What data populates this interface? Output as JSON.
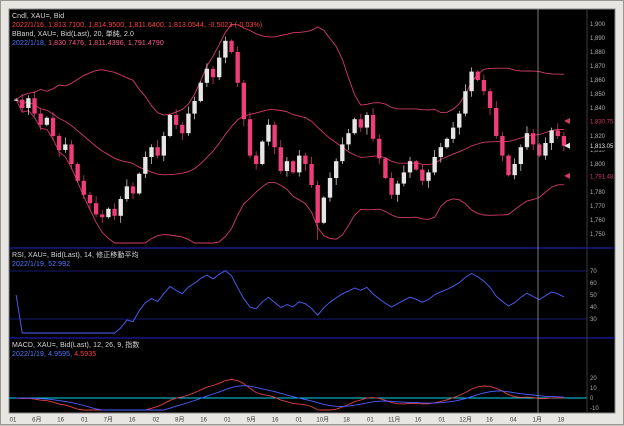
{
  "colors": {
    "chart_bg": "#000000",
    "margin_bg": "#e8e6e2",
    "candle_up": "#e6e6e6",
    "candle_down": "#ee3d7a",
    "band": "#d23b64",
    "rsi_line": "#5060ff",
    "rsi_level": "#202095",
    "macd_line": "#e04040",
    "macd_signal": "#4d5dff",
    "zero_line": "#00d5e8",
    "separator": "#2222cc",
    "axis_text": "#b0b0b0",
    "time_text": "#3a3a3a",
    "crosshair": "#9a9a9a"
  },
  "legend_main": {
    "line1": "Cndl, XAU=, Bid",
    "line2": "2022/1/16, 1,813.7100, 1,814.9500, 1,811.6400, 1,813.0544, -0.5023 (-0.03%)",
    "line3": "BBand, XAU=, Bid(Last), 20, 単純, 2.0",
    "line4_date": "2022/1/18,",
    "line4_values": "1,830.7476, 1,811.4396, 1,791.4790"
  },
  "legend_rsi": {
    "line1": "RSI, XAU=, Bid(Last), 14, 修正移動平均",
    "line2": "2022/1/19, 52.992"
  },
  "legend_macd": {
    "line1": "MACD, XAU=, Bid(Last), 12, 26, 9, 指数",
    "line2_a": "2022/1/19, 4.9595,",
    "line2_b": "4.5935"
  },
  "chart_data": [
    {
      "type": "candlestick",
      "name": "Cndl XAU= Bid (daily)",
      "ylim": [
        1745,
        1905
      ],
      "close": [
        1846,
        1840,
        1847,
        1836,
        1828,
        1833,
        1820,
        1810,
        1814,
        1800,
        1788,
        1778,
        1772,
        1764,
        1762,
        1768,
        1763,
        1775,
        1784,
        1779,
        1793,
        1805,
        1812,
        1806,
        1820,
        1835,
        1828,
        1822,
        1836,
        1845,
        1858,
        1868,
        1862,
        1876,
        1888,
        1880,
        1858,
        1832,
        1806,
        1800,
        1816,
        1828,
        1812,
        1795,
        1802,
        1794,
        1806,
        1800,
        1785,
        1758,
        1776,
        1790,
        1802,
        1814,
        1822,
        1832,
        1826,
        1835,
        1818,
        1804,
        1790,
        1778,
        1786,
        1794,
        1802,
        1796,
        1788,
        1794,
        1805,
        1812,
        1818,
        1826,
        1836,
        1852,
        1866,
        1860,
        1852,
        1840,
        1820,
        1806,
        1792,
        1800,
        1812,
        1822,
        1814,
        1806,
        1815,
        1824,
        1820,
        1813
      ],
      "last": {
        "date": "2022/1/16",
        "open": 1813.71,
        "high": 1814.95,
        "low": 1811.64,
        "close": 1813.0544,
        "change": -0.5023,
        "change_pct": "-0.03%"
      },
      "overlays": [
        {
          "name": "BBand",
          "period": 20,
          "stdev": 2.0,
          "last": {
            "date": "2022/1/18",
            "upper": 1830.7476,
            "middle": 1811.4396,
            "lower": 1791.479
          }
        }
      ]
    },
    {
      "type": "line",
      "name": "RSI",
      "period": 14,
      "ylim": [
        20,
        80
      ],
      "levels": [
        70,
        30
      ],
      "last": {
        "date": "2022/1/19",
        "value": 52.992
      }
    },
    {
      "type": "line",
      "name": "MACD",
      "params": [
        12,
        26,
        9
      ],
      "ylim": [
        -20,
        25
      ],
      "last": {
        "date": "2022/1/19",
        "macd": 4.9595,
        "signal": 4.5935
      }
    }
  ],
  "axis": {
    "price_ticks": [
      "1,900",
      "1,890",
      "1,880",
      "1,870",
      "1,860",
      "1,850",
      "1,840",
      "1,830",
      "1,820",
      "1,810",
      "1,800",
      "1,790",
      "1,780",
      "1,770",
      "1,760",
      "1,750"
    ],
    "rsi_ticks": [
      "70",
      "60",
      "50",
      "40",
      "30"
    ],
    "macd_ticks": [
      "20",
      "10",
      "0",
      "-10"
    ],
    "time_labels": [
      "01",
      "6月",
      "16",
      "01",
      "7月",
      "16",
      "02",
      "8月",
      "16",
      "01",
      "9月",
      "16",
      "01",
      "10月",
      "18",
      "01",
      "11月",
      "16",
      "01",
      "12月",
      "16",
      "04",
      "1月",
      "18"
    ]
  },
  "markers": {
    "tags": [
      {
        "label": "1,830.75",
        "value": 1830.75,
        "color": "#d23b64"
      },
      {
        "label": "1,813.05",
        "value": 1813.05,
        "color": "#e6e6e6"
      },
      {
        "label": "1,791.48",
        "value": 1791.48,
        "color": "#d23b64"
      }
    ]
  }
}
